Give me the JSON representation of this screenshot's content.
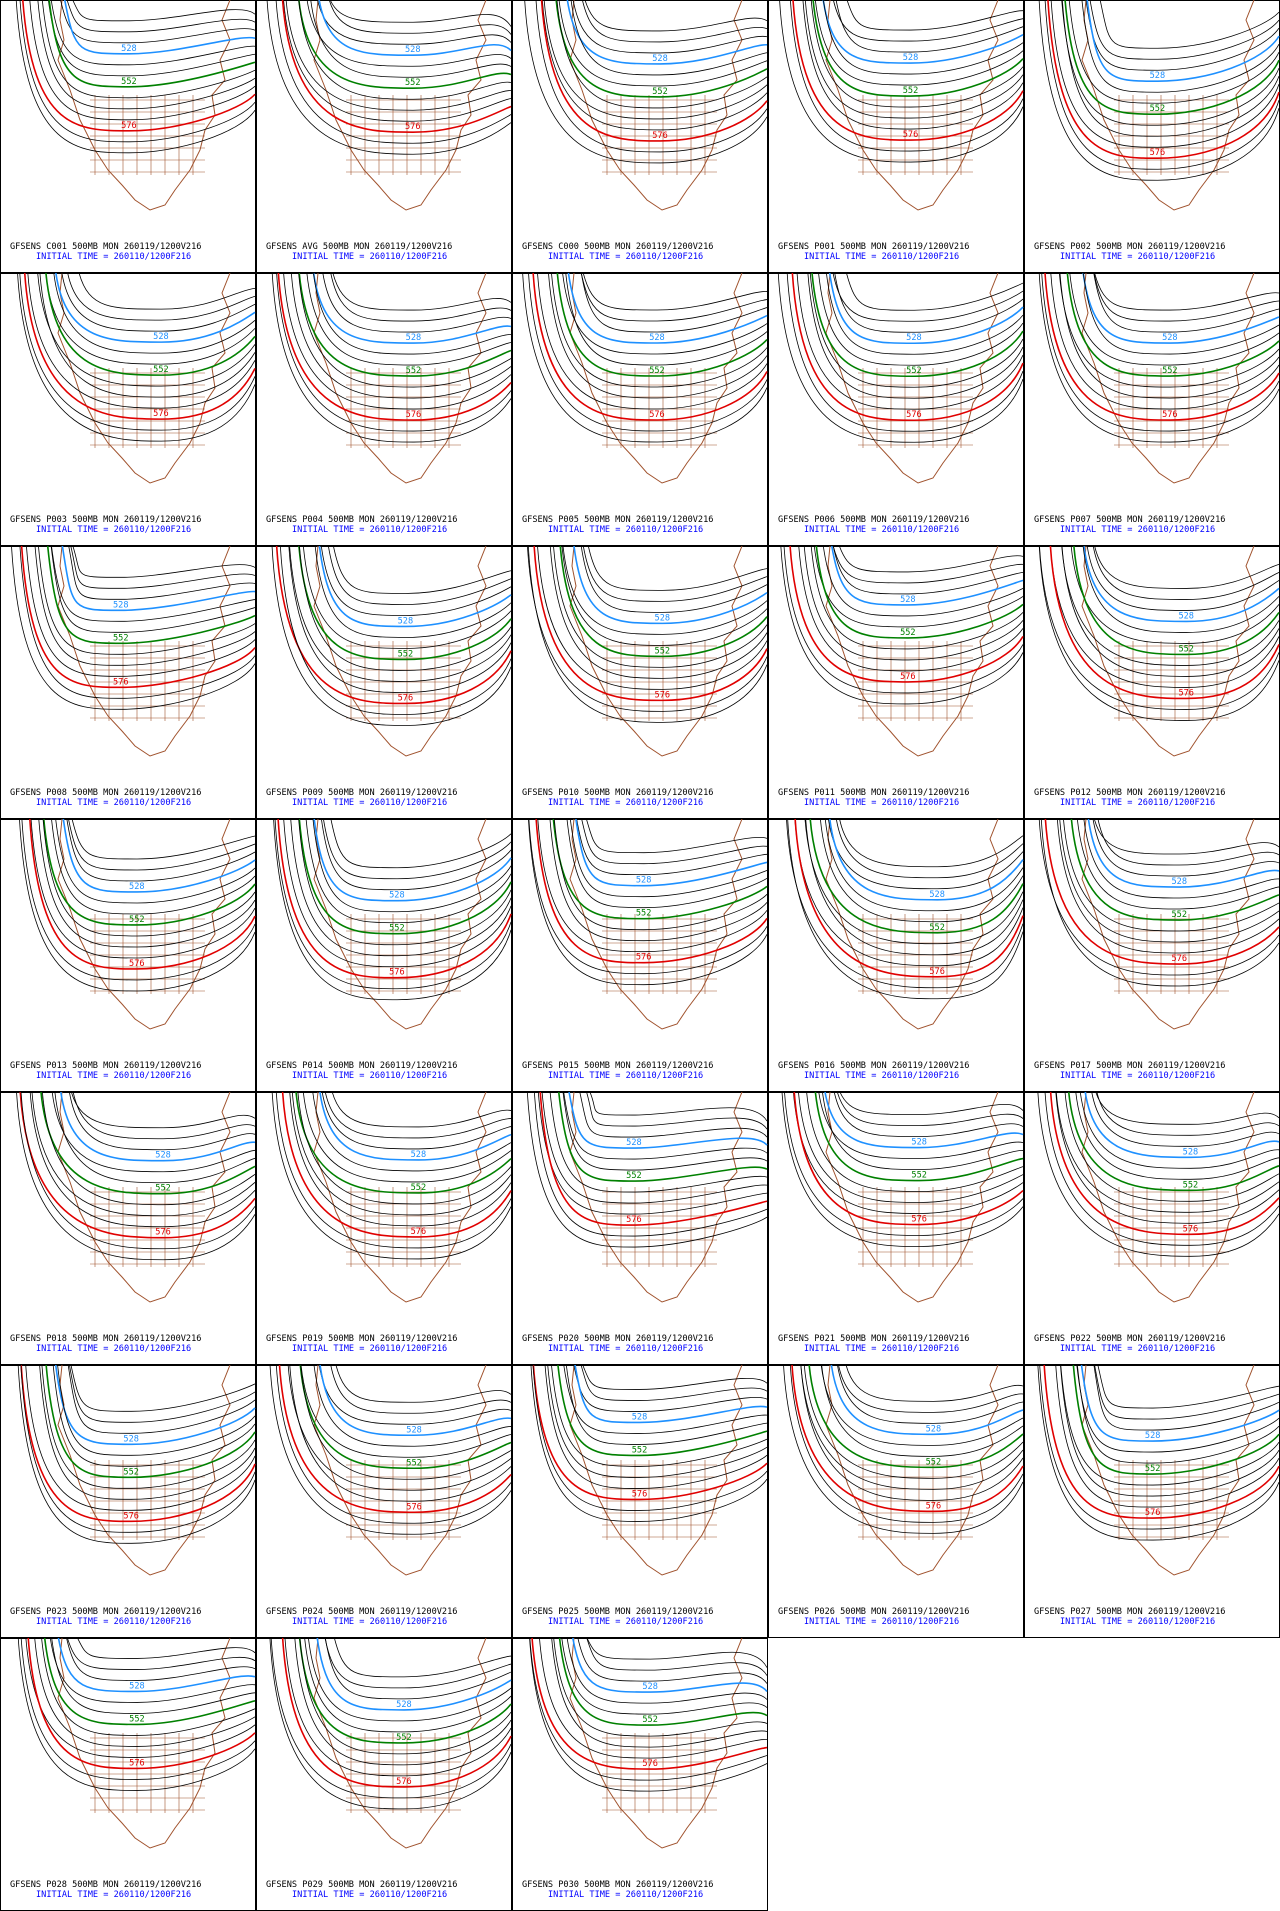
{
  "panels": [
    {
      "title": "GFSENS C001 500MB MON 260119/1200V216",
      "init": "INITIAL TIME = 260110/1200F216",
      "contour_labels": [
        "528",
        "552",
        "576"
      ]
    },
    {
      "title": "GFSENS AVG 500MB MON 260119/1200V216",
      "init": "INITIAL TIME = 260110/1200F216",
      "contour_labels": [
        "528",
        "552",
        "576"
      ]
    },
    {
      "title": "GFSENS C000 500MB MON 260119/1200V216",
      "init": "INITIAL TIME = 260110/1200F216",
      "contour_labels": [
        "528",
        "552",
        "576"
      ]
    },
    {
      "title": "GFSENS P001 500MB MON 260119/1200V216",
      "init": "INITIAL TIME = 260110/1200F216",
      "contour_labels": [
        "528",
        "552",
        "576"
      ]
    },
    {
      "title": "GFSENS P002 500MB MON 260119/1200V216",
      "init": "INITIAL TIME = 260110/1200F216",
      "contour_labels": [
        "528",
        "552",
        "576"
      ]
    },
    {
      "title": "GFSENS P003 500MB MON 260119/1200V216",
      "init": "INITIAL TIME = 260110/1200F216",
      "contour_labels": [
        "528",
        "552",
        "576"
      ]
    },
    {
      "title": "GFSENS P004 500MB MON 260119/1200V216",
      "init": "INITIAL TIME = 260110/1200F216",
      "contour_labels": [
        "528",
        "552",
        "576"
      ]
    },
    {
      "title": "GFSENS P005 500MB MON 260119/1200V216",
      "init": "INITIAL TIME = 260110/1200F216",
      "contour_labels": [
        "528",
        "552",
        "576"
      ]
    },
    {
      "title": "GFSENS P006 500MB MON 260119/1200V216",
      "init": "INITIAL TIME = 260110/1200F216",
      "contour_labels": [
        "528",
        "552",
        "576"
      ]
    },
    {
      "title": "GFSENS P007 500MB MON 260119/1200V216",
      "init": "INITIAL TIME = 260110/1200F216",
      "contour_labels": [
        "528",
        "552",
        "576"
      ]
    },
    {
      "title": "GFSENS P008 500MB MON 260119/1200V216",
      "init": "INITIAL TIME = 260110/1200F216",
      "contour_labels": [
        "528",
        "552",
        "576"
      ]
    },
    {
      "title": "GFSENS P009 500MB MON 260119/1200V216",
      "init": "INITIAL TIME = 260110/1200F216",
      "contour_labels": [
        "528",
        "552",
        "576"
      ]
    },
    {
      "title": "GFSENS P010 500MB MON 260119/1200V216",
      "init": "INITIAL TIME = 260110/1200F216",
      "contour_labels": [
        "528",
        "552",
        "576"
      ]
    },
    {
      "title": "GFSENS P011 500MB MON 260119/1200V216",
      "init": "INITIAL TIME = 260110/1200F216",
      "contour_labels": [
        "528",
        "552",
        "576"
      ]
    },
    {
      "title": "GFSENS P012 500MB MON 260119/1200V216",
      "init": "INITIAL TIME = 260110/1200F216",
      "contour_labels": [
        "528",
        "552",
        "576"
      ]
    },
    {
      "title": "GFSENS P013 500MB MON 260119/1200V216",
      "init": "INITIAL TIME = 260110/1200F216",
      "contour_labels": [
        "528",
        "552",
        "576"
      ]
    },
    {
      "title": "GFSENS P014 500MB MON 260119/1200V216",
      "init": "INITIAL TIME = 260110/1200F216",
      "contour_labels": [
        "528",
        "552",
        "576"
      ]
    },
    {
      "title": "GFSENS P015 500MB MON 260119/1200V216",
      "init": "INITIAL TIME = 260110/1200F216",
      "contour_labels": [
        "528",
        "552",
        "576"
      ]
    },
    {
      "title": "GFSENS P016 500MB MON 260119/1200V216",
      "init": "INITIAL TIME = 260110/1200F216",
      "contour_labels": [
        "528",
        "552",
        "576"
      ]
    },
    {
      "title": "GFSENS P017 500MB MON 260119/1200V216",
      "init": "INITIAL TIME = 260110/1200F216",
      "contour_labels": [
        "528",
        "552",
        "576"
      ]
    },
    {
      "title": "GFSENS P018 500MB MON 260119/1200V216",
      "init": "INITIAL TIME = 260110/1200F216",
      "contour_labels": [
        "528",
        "552",
        "576"
      ]
    },
    {
      "title": "GFSENS P019 500MB MON 260119/1200V216",
      "init": "INITIAL TIME = 260110/1200F216",
      "contour_labels": [
        "528",
        "552",
        "576"
      ]
    },
    {
      "title": "GFSENS P020 500MB MON 260119/1200V216",
      "init": "INITIAL TIME = 260110/1200F216",
      "contour_labels": [
        "528",
        "552",
        "576"
      ]
    },
    {
      "title": "GFSENS P021 500MB MON 260119/1200V216",
      "init": "INITIAL TIME = 260110/1200F216",
      "contour_labels": [
        "528",
        "552",
        "576"
      ]
    },
    {
      "title": "GFSENS P022 500MB MON 260119/1200V216",
      "init": "INITIAL TIME = 260110/1200F216",
      "contour_labels": [
        "528",
        "552",
        "576"
      ]
    },
    {
      "title": "GFSENS P023 500MB MON 260119/1200V216",
      "init": "INITIAL TIME = 260110/1200F216",
      "contour_labels": [
        "528",
        "552",
        "576"
      ]
    },
    {
      "title": "GFSENS P024 500MB MON 260119/1200V216",
      "init": "INITIAL TIME = 260110/1200F216",
      "contour_labels": [
        "528",
        "552",
        "576"
      ]
    },
    {
      "title": "GFSENS P025 500MB MON 260119/1200V216",
      "init": "INITIAL TIME = 260110/1200F216",
      "contour_labels": [
        "528",
        "552",
        "576"
      ]
    },
    {
      "title": "GFSENS P026 500MB MON 260119/1200V216",
      "init": "INITIAL TIME = 260110/1200F216",
      "contour_labels": [
        "528",
        "552",
        "576"
      ]
    },
    {
      "title": "GFSENS P027 500MB MON 260119/1200V216",
      "init": "INITIAL TIME = 260110/1200F216",
      "contour_labels": [
        "528",
        "552",
        "576"
      ]
    },
    {
      "title": "GFSENS P028 500MB MON 260119/1200V216",
      "init": "INITIAL TIME = 260110/1200F216",
      "contour_labels": [
        "528",
        "552",
        "576"
      ]
    },
    {
      "title": "GFSENS P029 500MB MON 260119/1200V216",
      "init": "INITIAL TIME = 260110/1200F216",
      "contour_labels": [
        "528",
        "552",
        "576"
      ]
    },
    {
      "title": "GFSENS P030 500MB MON 260119/1200V216",
      "init": "INITIAL TIME = 260110/1200F216",
      "contour_labels": [
        "528",
        "552",
        "576"
      ]
    }
  ]
}
